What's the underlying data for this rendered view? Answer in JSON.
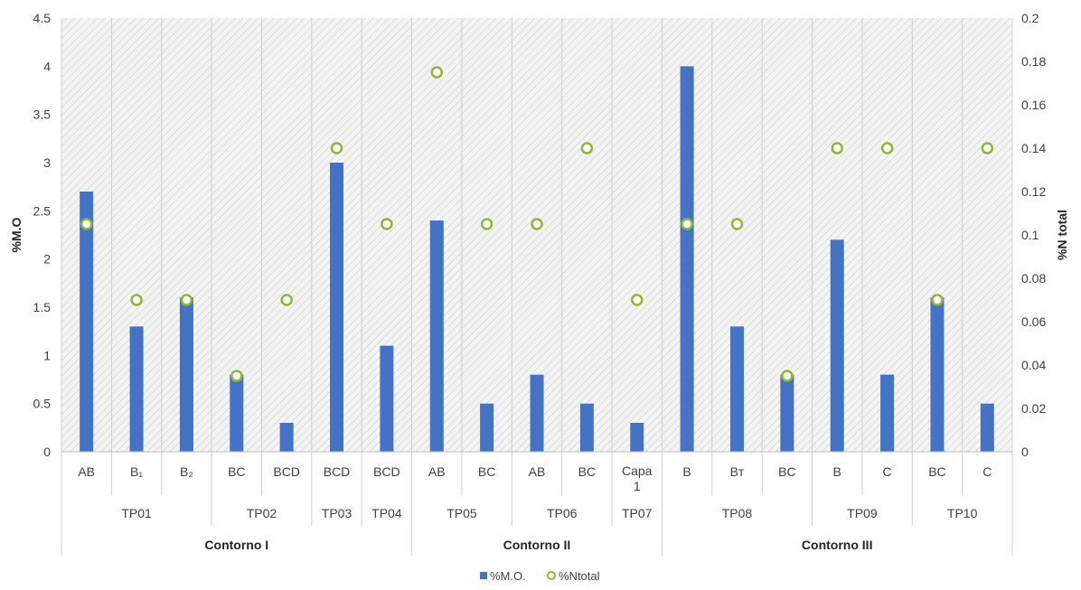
{
  "chart_data": {
    "type": "bar",
    "ylabel_left": "%M.O",
    "ylabel_right": "%N total",
    "ylim_left": [
      0,
      4.5
    ],
    "yticks_left": [
      "0",
      "0.5",
      "1",
      "1.5",
      "2",
      "2.5",
      "3",
      "3.5",
      "4",
      "4.5"
    ],
    "ylim_right": [
      0,
      0.2
    ],
    "yticks_right": [
      "0",
      "0.02",
      "0.04",
      "0.06",
      "0.08",
      "0.1",
      "0.12",
      "0.14",
      "0.16",
      "0.18",
      "0.2"
    ],
    "categories": [
      "AB",
      "B₁",
      "B₂",
      "BC",
      "BCD",
      "BCD",
      "BCD",
      "AB",
      "BC",
      "AB",
      "BC",
      "Capa 1",
      "B",
      "Bт",
      "BC",
      "B",
      "C",
      "BC",
      "C"
    ],
    "profiles": [
      {
        "label": "TP01",
        "span": 3
      },
      {
        "label": "TP02",
        "span": 2
      },
      {
        "label": "TP03",
        "span": 1
      },
      {
        "label": "TP04",
        "span": 1
      },
      {
        "label": "TP05",
        "span": 2
      },
      {
        "label": "TP06",
        "span": 2
      },
      {
        "label": "TP07",
        "span": 1
      },
      {
        "label": "TP08",
        "span": 3
      },
      {
        "label": "TP09",
        "span": 2
      },
      {
        "label": "TP10",
        "span": 2
      }
    ],
    "contours": [
      {
        "label": "Contorno I",
        "span": 7
      },
      {
        "label": "Contorno II",
        "span": 5
      },
      {
        "label": "Contorno III",
        "span": 7
      }
    ],
    "series": [
      {
        "name": "%M.O.",
        "type": "bar",
        "axis": "left",
        "color": "#4472C4",
        "values": [
          2.7,
          1.3,
          1.6,
          0.8,
          0.3,
          3.0,
          1.1,
          2.4,
          0.5,
          0.8,
          0.5,
          0.3,
          4.0,
          1.3,
          0.8,
          2.2,
          0.8,
          1.6,
          0.5
        ]
      },
      {
        "name": "%Ntotal",
        "type": "scatter",
        "axis": "right",
        "color": "#8DB83A",
        "values": [
          0.105,
          0.07,
          0.07,
          0.035,
          0.07,
          0.14,
          0.105,
          0.175,
          0.105,
          0.105,
          0.14,
          0.07,
          0.105,
          0.105,
          0.035,
          0.14,
          0.14,
          0.07,
          0.14
        ]
      }
    ],
    "legend_position": "bottom",
    "grid": false
  }
}
